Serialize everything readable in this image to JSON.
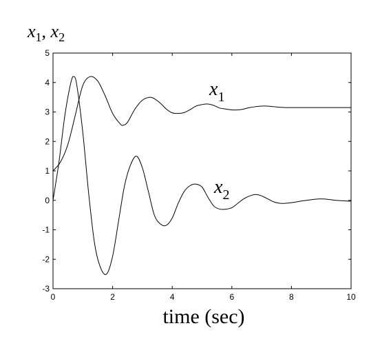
{
  "chart_data": {
    "type": "line",
    "title": "",
    "xlabel": "time (sec)",
    "ylabel": {
      "var1": "x",
      "sub1": "1",
      "sep": ", ",
      "var2": "x",
      "sub2": "2"
    },
    "xlim": [
      0,
      10
    ],
    "ylim": [
      -3,
      5
    ],
    "xticks": [
      0,
      2,
      4,
      6,
      8,
      10
    ],
    "yticks": [
      -3,
      -2,
      -1,
      0,
      1,
      2,
      3,
      4,
      5
    ],
    "grid": false,
    "legend": "none",
    "line_color": "#000000",
    "series": [
      {
        "name": "x1",
        "label": {
          "var": "x",
          "sub": "1"
        },
        "x": [
          0,
          0.25,
          0.5,
          0.75,
          1.0,
          1.25,
          1.5,
          1.75,
          2.0,
          2.25,
          2.35,
          2.5,
          2.75,
          3.0,
          3.25,
          3.4,
          3.6,
          3.8,
          4.0,
          4.2,
          4.4,
          4.6,
          4.8,
          5.0,
          5.2,
          5.4,
          5.6,
          5.8,
          6.0,
          6.2,
          6.4,
          6.6,
          6.8,
          7.0,
          7.2,
          7.4,
          7.6,
          7.8,
          8.0,
          8.5,
          9.0,
          9.5,
          10.0
        ],
        "y": [
          1.0,
          1.3,
          1.9,
          2.9,
          3.9,
          4.2,
          4.05,
          3.55,
          2.95,
          2.6,
          2.55,
          2.65,
          3.1,
          3.4,
          3.5,
          3.45,
          3.3,
          3.1,
          2.97,
          2.95,
          2.98,
          3.08,
          3.2,
          3.25,
          3.27,
          3.22,
          3.13,
          3.1,
          3.07,
          3.07,
          3.1,
          3.15,
          3.18,
          3.2,
          3.2,
          3.18,
          3.16,
          3.15,
          3.15,
          3.15,
          3.15,
          3.15,
          3.15
        ]
      },
      {
        "name": "x2",
        "label": {
          "var": "x",
          "sub": "2"
        },
        "x": [
          0,
          0.2,
          0.4,
          0.6,
          0.7,
          0.8,
          1.0,
          1.2,
          1.4,
          1.6,
          1.8,
          2.0,
          2.2,
          2.4,
          2.6,
          2.8,
          3.0,
          3.2,
          3.4,
          3.6,
          3.8,
          4.0,
          4.2,
          4.4,
          4.6,
          4.8,
          5.0,
          5.2,
          5.4,
          5.6,
          5.8,
          6.0,
          6.2,
          6.4,
          6.6,
          6.8,
          7.0,
          7.2,
          7.4,
          7.6,
          7.8,
          8.0,
          8.5,
          9.0,
          9.5,
          10.0
        ],
        "y": [
          0,
          1.3,
          2.9,
          4.0,
          4.2,
          3.9,
          2.3,
          0.2,
          -1.5,
          -2.3,
          -2.5,
          -1.9,
          -0.7,
          0.5,
          1.2,
          1.5,
          1.1,
          0.3,
          -0.5,
          -0.8,
          -0.85,
          -0.6,
          -0.1,
          0.3,
          0.5,
          0.55,
          0.45,
          0.1,
          -0.2,
          -0.3,
          -0.3,
          -0.25,
          -0.1,
          0.05,
          0.15,
          0.2,
          0.15,
          0.05,
          -0.05,
          -0.1,
          -0.1,
          -0.08,
          0.0,
          0.05,
          0.0,
          -0.03
        ]
      }
    ]
  }
}
